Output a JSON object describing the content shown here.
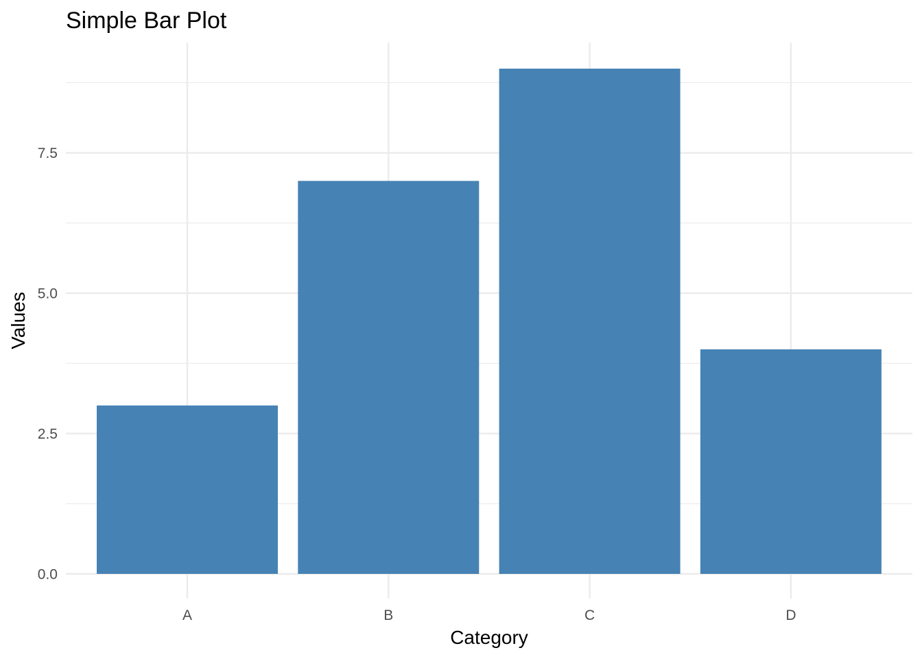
{
  "chart_data": {
    "type": "bar",
    "title": "Simple Bar Plot",
    "xlabel": "Category",
    "ylabel": "Values",
    "categories": [
      "A",
      "B",
      "C",
      "D"
    ],
    "values": [
      3,
      7,
      9,
      4
    ],
    "ylim": [
      0,
      9.45
    ],
    "yticks": [
      0,
      2.5,
      5,
      7.5
    ],
    "ytick_labels": [
      "0.0",
      "2.5",
      "5.0",
      "7.5"
    ],
    "grid": true,
    "bar_color": "#4682b4",
    "legend": "none"
  }
}
